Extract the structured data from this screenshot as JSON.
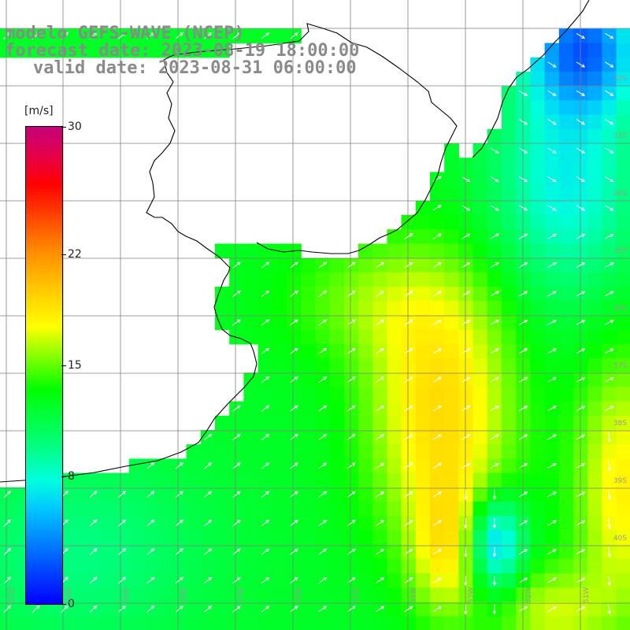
{
  "title": {
    "line1": "modelo GEFS-WAVE (NCEP)",
    "line2": "forecast date: 2023-08-19 18:00:00",
    "line3": "valid date: 2023-08-31 06:00:00"
  },
  "colorbar": {
    "unit": "[m/s]",
    "min": 0,
    "max": 30,
    "ticks": [
      "30",
      "22",
      "15",
      "8",
      "0"
    ],
    "tick_values": [
      30,
      22,
      15,
      8,
      0
    ]
  },
  "grid": {
    "lat_labels": [
      "32S",
      "33S",
      "34S",
      "35S",
      "36S",
      "37S",
      "38S",
      "39S",
      "40S"
    ],
    "lon_labels": [
      "61W",
      "60W",
      "59W",
      "58W",
      "57W",
      "56W",
      "55W",
      "54W",
      "53W",
      "52W",
      "51W"
    ]
  },
  "colors": {
    "land": "#ffffff",
    "grid": "#7f7f7f",
    "coast": "#000000",
    "arrows": "#ffffff",
    "title": "#8a8a8a"
  }
}
